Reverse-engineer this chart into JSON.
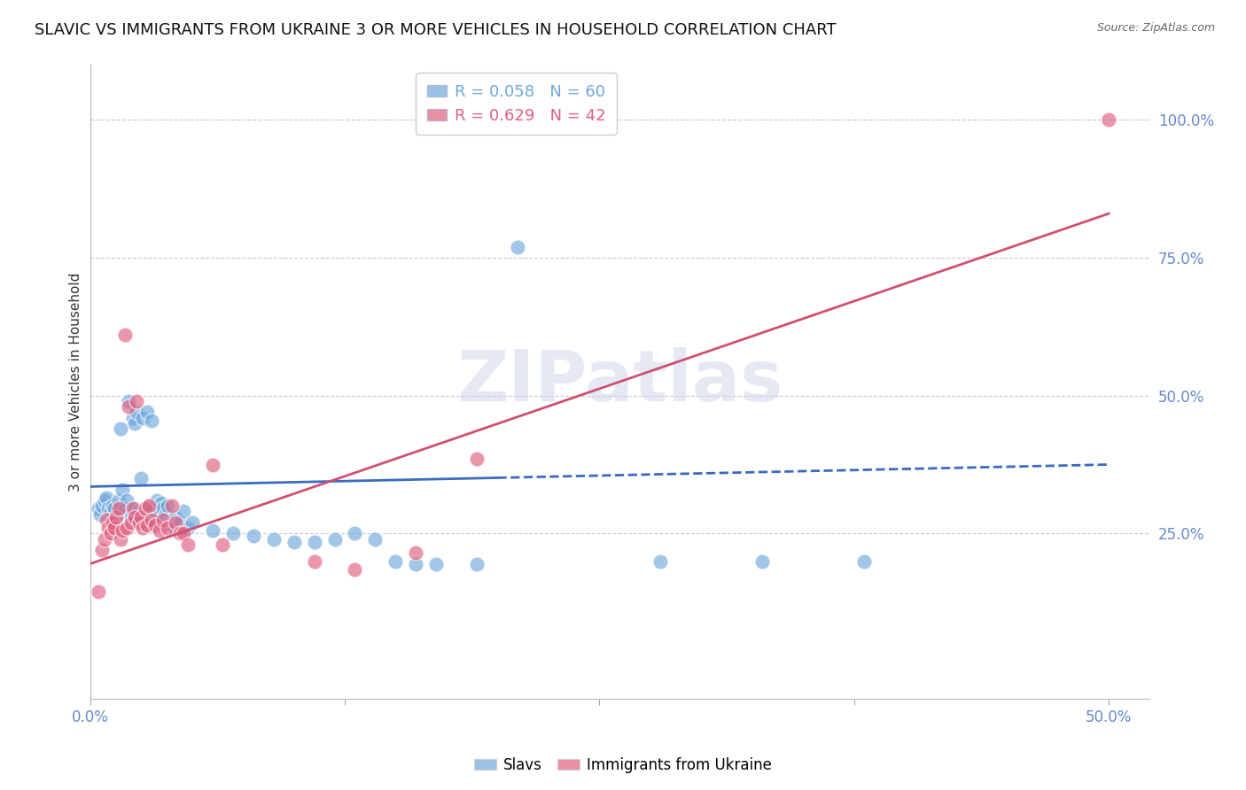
{
  "title": "SLAVIC VS IMMIGRANTS FROM UKRAINE 3 OR MORE VEHICLES IN HOUSEHOLD CORRELATION CHART",
  "source": "Source: ZipAtlas.com",
  "ylabel": "3 or more Vehicles in Household",
  "xlim": [
    0.0,
    0.52
  ],
  "ylim": [
    -0.05,
    1.1
  ],
  "x_ticks": [
    0.0,
    0.125,
    0.25,
    0.375,
    0.5
  ],
  "x_tick_labels": [
    "0.0%",
    "",
    "",
    "",
    "50.0%"
  ],
  "y_ticks": [
    0.25,
    0.5,
    0.75,
    1.0
  ],
  "y_tick_labels": [
    "25.0%",
    "50.0%",
    "75.0%",
    "100.0%"
  ],
  "legend_entries": [
    {
      "label": "R = 0.058   N = 60",
      "color": "#6fa8dc"
    },
    {
      "label": "R = 0.629   N = 42",
      "color": "#e06080"
    }
  ],
  "watermark": "ZIPatlas",
  "axis_color": "#6688cc",
  "grid_color": "#c8c8d8",
  "title_fontsize": 13,
  "label_fontsize": 11,
  "tick_fontsize": 12,
  "slavs_color": "#6fa8dc",
  "ukraine_color": "#e06080",
  "slavs_scatter": [
    [
      0.004,
      0.295
    ],
    [
      0.005,
      0.285
    ],
    [
      0.006,
      0.3
    ],
    [
      0.007,
      0.31
    ],
    [
      0.008,
      0.315
    ],
    [
      0.009,
      0.295
    ],
    [
      0.01,
      0.29
    ],
    [
      0.011,
      0.3
    ],
    [
      0.012,
      0.295
    ],
    [
      0.013,
      0.28
    ],
    [
      0.014,
      0.31
    ],
    [
      0.015,
      0.295
    ],
    [
      0.015,
      0.44
    ],
    [
      0.016,
      0.33
    ],
    [
      0.017,
      0.295
    ],
    [
      0.018,
      0.31
    ],
    [
      0.019,
      0.49
    ],
    [
      0.02,
      0.28
    ],
    [
      0.021,
      0.46
    ],
    [
      0.022,
      0.295
    ],
    [
      0.022,
      0.45
    ],
    [
      0.023,
      0.47
    ],
    [
      0.024,
      0.29
    ],
    [
      0.025,
      0.35
    ],
    [
      0.026,
      0.46
    ],
    [
      0.027,
      0.29
    ],
    [
      0.028,
      0.47
    ],
    [
      0.029,
      0.3
    ],
    [
      0.03,
      0.455
    ],
    [
      0.031,
      0.295
    ],
    [
      0.032,
      0.28
    ],
    [
      0.033,
      0.31
    ],
    [
      0.034,
      0.29
    ],
    [
      0.035,
      0.305
    ],
    [
      0.036,
      0.295
    ],
    [
      0.037,
      0.285
    ],
    [
      0.038,
      0.3
    ],
    [
      0.04,
      0.265
    ],
    [
      0.042,
      0.28
    ],
    [
      0.044,
      0.27
    ],
    [
      0.046,
      0.29
    ],
    [
      0.048,
      0.26
    ],
    [
      0.05,
      0.27
    ],
    [
      0.06,
      0.255
    ],
    [
      0.07,
      0.25
    ],
    [
      0.08,
      0.245
    ],
    [
      0.09,
      0.24
    ],
    [
      0.1,
      0.235
    ],
    [
      0.11,
      0.235
    ],
    [
      0.12,
      0.24
    ],
    [
      0.13,
      0.25
    ],
    [
      0.14,
      0.24
    ],
    [
      0.15,
      0.2
    ],
    [
      0.16,
      0.195
    ],
    [
      0.17,
      0.195
    ],
    [
      0.19,
      0.195
    ],
    [
      0.21,
      0.77
    ],
    [
      0.28,
      0.2
    ],
    [
      0.33,
      0.2
    ],
    [
      0.38,
      0.2
    ]
  ],
  "ukraine_scatter": [
    [
      0.004,
      0.145
    ],
    [
      0.006,
      0.22
    ],
    [
      0.007,
      0.24
    ],
    [
      0.008,
      0.275
    ],
    [
      0.009,
      0.26
    ],
    [
      0.01,
      0.25
    ],
    [
      0.011,
      0.27
    ],
    [
      0.012,
      0.26
    ],
    [
      0.013,
      0.28
    ],
    [
      0.014,
      0.295
    ],
    [
      0.015,
      0.24
    ],
    [
      0.016,
      0.255
    ],
    [
      0.017,
      0.61
    ],
    [
      0.018,
      0.26
    ],
    [
      0.019,
      0.48
    ],
    [
      0.02,
      0.27
    ],
    [
      0.021,
      0.295
    ],
    [
      0.022,
      0.28
    ],
    [
      0.023,
      0.49
    ],
    [
      0.024,
      0.27
    ],
    [
      0.025,
      0.28
    ],
    [
      0.026,
      0.26
    ],
    [
      0.027,
      0.295
    ],
    [
      0.028,
      0.265
    ],
    [
      0.029,
      0.3
    ],
    [
      0.03,
      0.275
    ],
    [
      0.032,
      0.265
    ],
    [
      0.034,
      0.255
    ],
    [
      0.036,
      0.275
    ],
    [
      0.038,
      0.26
    ],
    [
      0.04,
      0.3
    ],
    [
      0.042,
      0.27
    ],
    [
      0.044,
      0.25
    ],
    [
      0.046,
      0.25
    ],
    [
      0.048,
      0.23
    ],
    [
      0.06,
      0.375
    ],
    [
      0.065,
      0.23
    ],
    [
      0.11,
      0.2
    ],
    [
      0.13,
      0.185
    ],
    [
      0.16,
      0.215
    ],
    [
      0.19,
      0.385
    ],
    [
      0.5,
      1.0
    ]
  ],
  "blue_line": {
    "x0": 0.0,
    "y0": 0.335,
    "x1": 0.5,
    "y1": 0.375
  },
  "blue_line_solid_end": 0.2,
  "pink_line": {
    "x0": 0.0,
    "y0": 0.195,
    "x1": 0.5,
    "y1": 0.83
  }
}
